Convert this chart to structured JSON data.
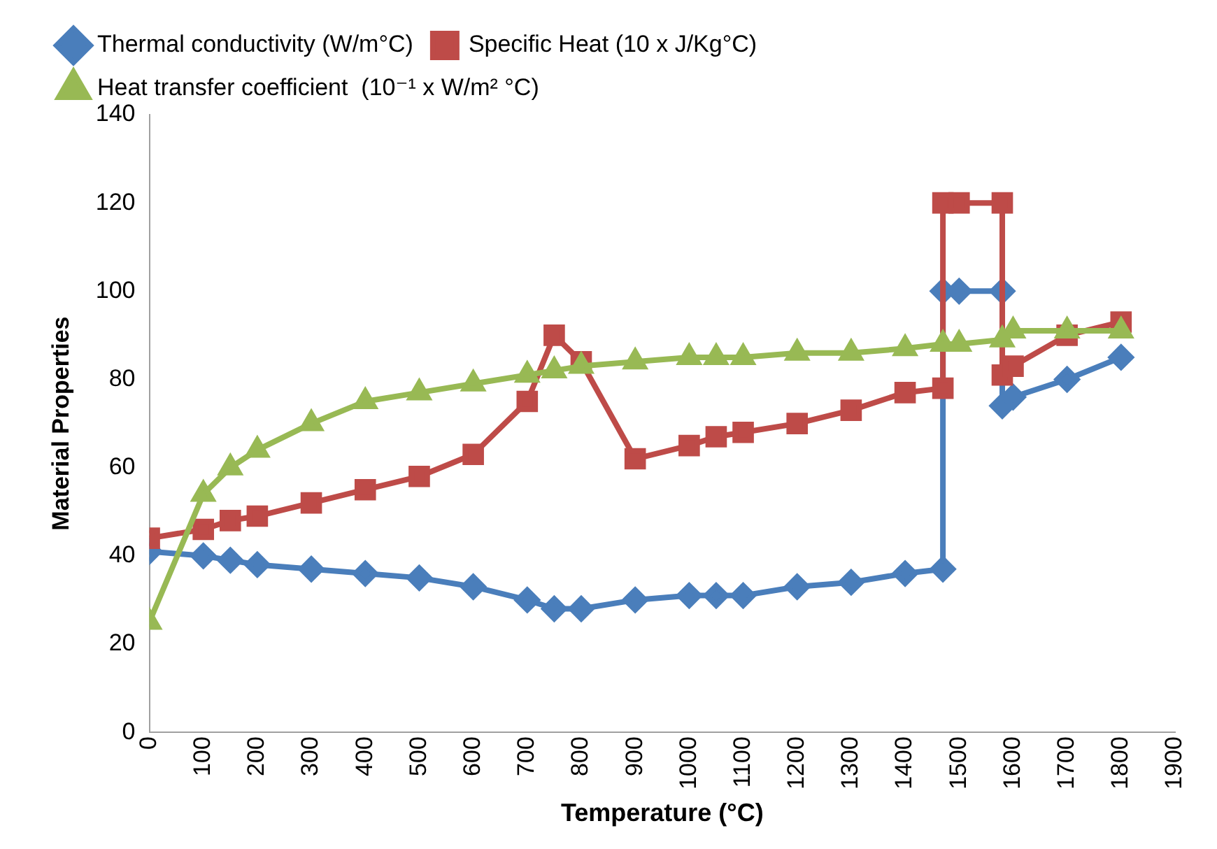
{
  "chart_data": {
    "type": "line",
    "xlabel": "Temperature (°C)",
    "ylabel": "Material Properties",
    "xlim": [
      0,
      1900
    ],
    "xticks": [
      0,
      100,
      200,
      300,
      400,
      500,
      600,
      700,
      800,
      900,
      1000,
      1100,
      1200,
      1300,
      1400,
      1500,
      1600,
      1700,
      1800,
      1900
    ],
    "ylim": [
      0,
      140
    ],
    "yticks": [
      0,
      20,
      40,
      60,
      80,
      100,
      120,
      140
    ],
    "grid": false,
    "legend": "top left",
    "series": [
      {
        "name": "Thermal conductivity (W/m°C)",
        "color": "#4a7ebb",
        "marker": "diamond",
        "x": [
          0,
          100,
          150,
          200,
          300,
          400,
          500,
          600,
          700,
          750,
          800,
          900,
          1000,
          1050,
          1100,
          1200,
          1300,
          1400,
          1470,
          1470,
          1500,
          1580,
          1580,
          1600,
          1700,
          1800
        ],
        "values": [
          41,
          40,
          39,
          38,
          37,
          36,
          35,
          33,
          30,
          28,
          28,
          30,
          31,
          31,
          31,
          33,
          34,
          36,
          37,
          100,
          100,
          100,
          74,
          76,
          80,
          85
        ]
      },
      {
        "name": "Specific Heat (10 x J/Kg°C)",
        "color": "#be4b48",
        "marker": "square",
        "x": [
          0,
          100,
          150,
          200,
          300,
          400,
          500,
          600,
          700,
          750,
          800,
          900,
          1000,
          1050,
          1100,
          1200,
          1300,
          1400,
          1470,
          1470,
          1500,
          1580,
          1580,
          1600,
          1700,
          1800
        ],
        "values": [
          44,
          46,
          48,
          49,
          52,
          55,
          58,
          63,
          75,
          90,
          84,
          62,
          65,
          67,
          68,
          70,
          73,
          77,
          78,
          120,
          120,
          120,
          81,
          83,
          90,
          93
        ]
      },
      {
        "name": "Heat transfer coefficient  (10⁻¹ x W/m² °C)",
        "color": "#98b954",
        "marker": "triangle",
        "x": [
          0,
          100,
          150,
          200,
          300,
          400,
          500,
          600,
          700,
          750,
          800,
          900,
          1000,
          1050,
          1100,
          1200,
          1300,
          1400,
          1470,
          1500,
          1580,
          1600,
          1700,
          1800
        ],
        "values": [
          25,
          54,
          60,
          64,
          70,
          75,
          77,
          79,
          81,
          82,
          83,
          84,
          85,
          85,
          85,
          86,
          86,
          87,
          88,
          88,
          89,
          91,
          91,
          91
        ]
      }
    ]
  }
}
